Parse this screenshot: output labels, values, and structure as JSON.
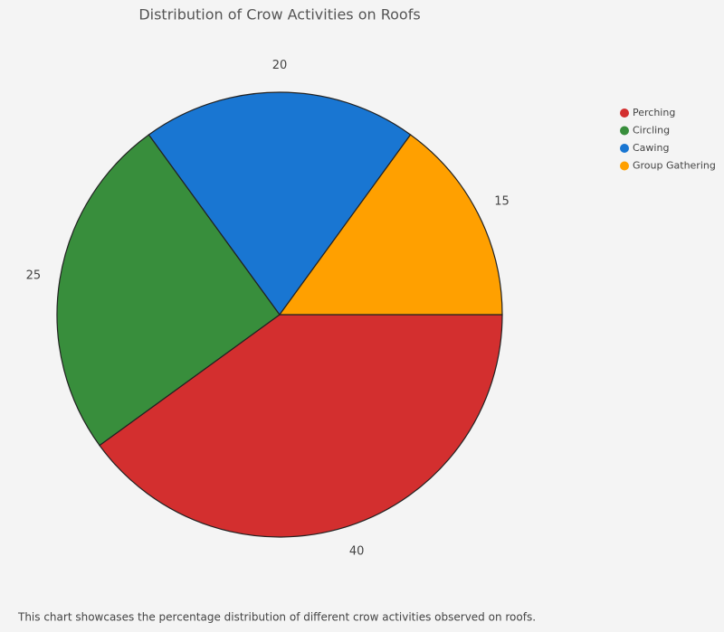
{
  "chart_data": {
    "type": "pie",
    "title": "Distribution of Crow Activities on Roofs",
    "categories": [
      "Perching",
      "Circling",
      "Cawing",
      "Group Gathering"
    ],
    "values": [
      40,
      25,
      20,
      15
    ],
    "colors": [
      "#d32f2f",
      "#388e3c",
      "#1976d2",
      "#ffa000"
    ],
    "legend": "right"
  },
  "caption": "This chart showcases the percentage distribution of different crow activities observed on roofs."
}
